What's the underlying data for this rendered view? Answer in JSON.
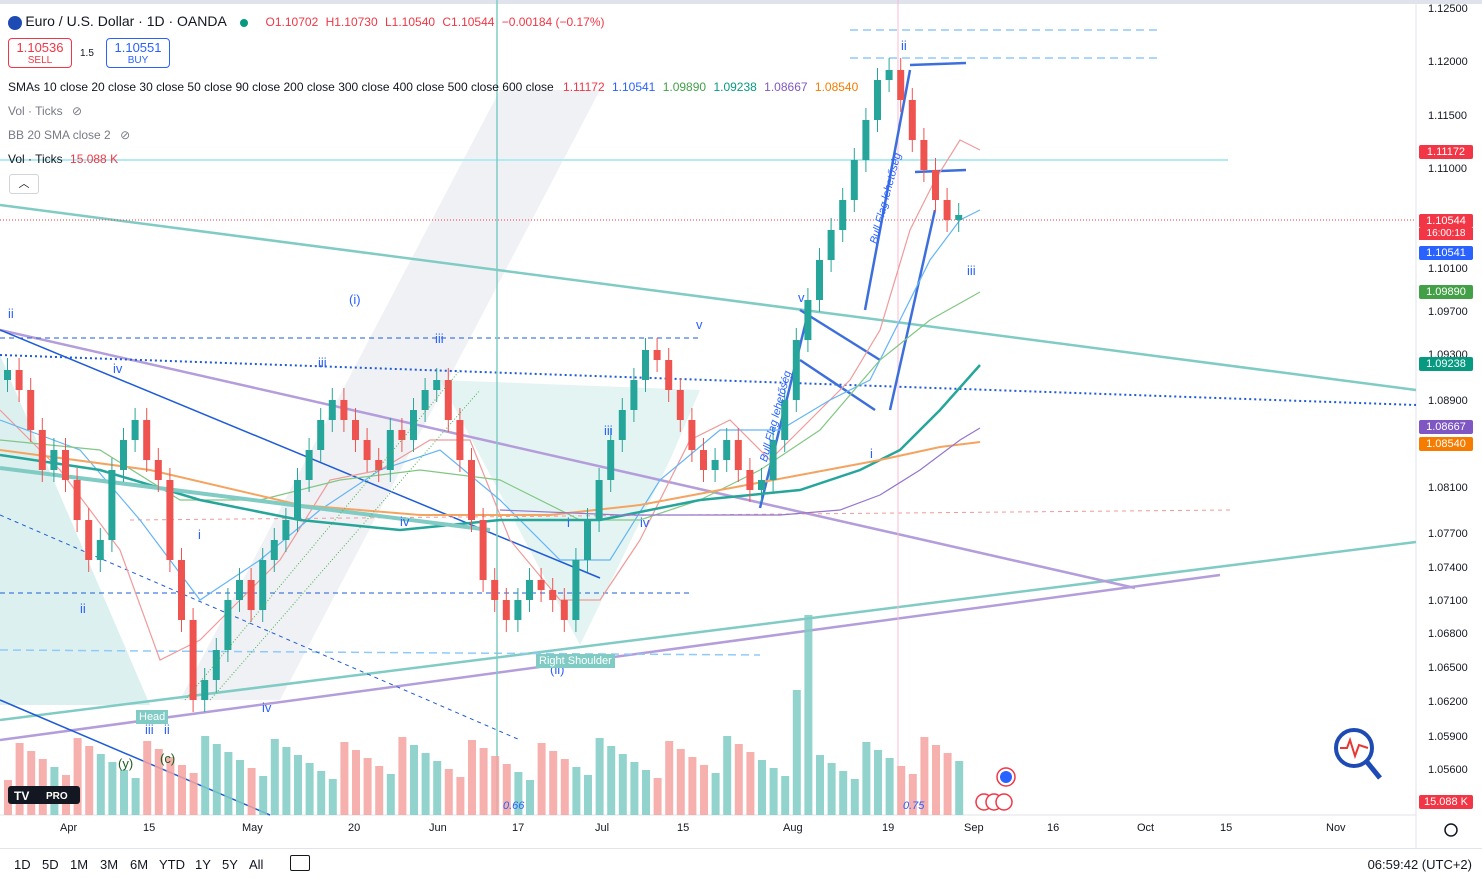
{
  "header": {
    "symbol": "Euro / U.S. Dollar · 1D · OANDA",
    "open": "O1.10702",
    "high": "H1.10730",
    "low": "L1.10540",
    "close": "C1.10544",
    "change": "−0.00184 (−0.17%)",
    "sell_price": "1.10536",
    "sell_label": "SELL",
    "buy_price": "1.10551",
    "buy_label": "BUY",
    "spread": "1.5"
  },
  "indicators": {
    "sma_label": "SMAs 10 close 20 close 30 close 50 close 90 close 200 close 300 close 400 close 500 close 600 close",
    "sma_values": [
      "1.11172",
      "1.10541",
      "1.09890",
      "1.09238",
      "1.08667",
      "1.08540"
    ],
    "vol_ticks_hidden": "Vol · Ticks",
    "bb_label": "BB 20 SMA close 2",
    "vol_ticks": "Vol · Ticks",
    "vol_value": "15.088 K"
  },
  "price_axis": {
    "ticks": [
      "1.12500",
      "1.12000",
      "1.11500",
      "1.11000",
      "1.10100",
      "1.09700",
      "1.09300",
      "1.08900",
      "1.08100",
      "1.07700",
      "1.07400",
      "1.07100",
      "1.06800",
      "1.06500",
      "1.06200",
      "1.05900",
      "1.05600"
    ],
    "tags": [
      {
        "text": "1.11172",
        "color": "#f23645"
      },
      {
        "text": "1.10544",
        "color": "#f23645"
      },
      {
        "text": "16:00:18",
        "color": "#f23645"
      },
      {
        "text": "1.10541",
        "color": "#2962ff"
      },
      {
        "text": "1.09890",
        "color": "#43a047"
      },
      {
        "text": "1.09238",
        "color": "#089981"
      },
      {
        "text": "1.08667",
        "color": "#7e57c2"
      },
      {
        "text": "1.08540",
        "color": "#f57c00"
      },
      {
        "text": "15.088 K",
        "color": "#f23645"
      }
    ]
  },
  "time_axis": [
    "Apr",
    "15",
    "May",
    "20",
    "Jun",
    "17",
    "Jul",
    "15",
    "Aug",
    "19",
    "Sep",
    "16",
    "Oct",
    "15",
    "Nov"
  ],
  "annotations": {
    "waves": [
      "ii",
      "iv",
      "iii",
      "(i)",
      "iii",
      "v",
      "i",
      "iv",
      "iii",
      "i",
      "iv",
      "v",
      "i",
      "ii",
      "iii",
      "iv",
      "ii",
      "(ii)",
      "iii",
      "ii",
      "(y)",
      "(c)"
    ],
    "head": "Head",
    "right_shoulder": "Right Shoulder",
    "bull_flag_1": "Bull Flag lehetőség",
    "bull_flag_2": "Bull Flag lehetőség",
    "vol_markers": [
      "0.66",
      "0.75"
    ]
  },
  "bottom_bar": {
    "timeframes": [
      "1D",
      "5D",
      "1M",
      "3M",
      "6M",
      "YTD",
      "1Y",
      "5Y",
      "All"
    ],
    "clock": "06:59:42 (UTC+2)"
  },
  "colors": {
    "up": "#26a69a",
    "down": "#ef5350",
    "accent": "#2962ff"
  }
}
